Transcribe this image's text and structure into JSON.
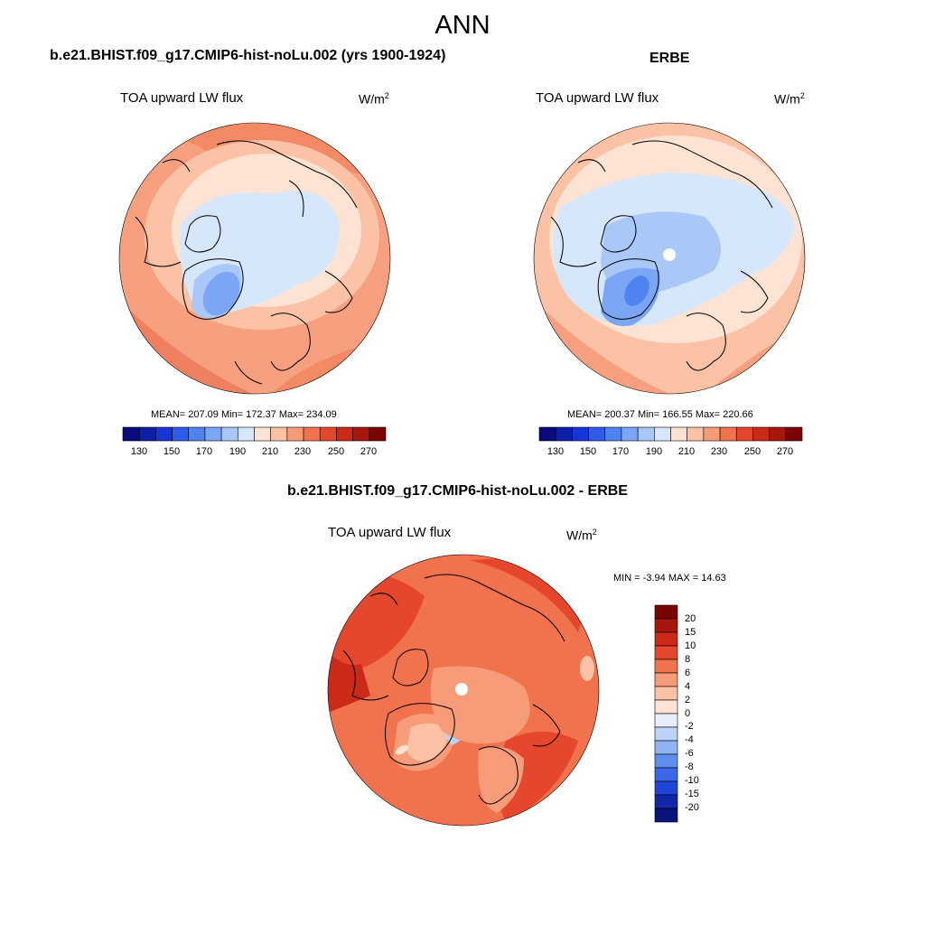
{
  "page": {
    "title": "ANN"
  },
  "panels": [
    {
      "id": "model",
      "case_title": "b.e21.BHIST.f09_g17.CMIP6-hist-noLu.002 (yrs 1900-1924)",
      "variable": "TOA upward LW flux",
      "units": "W/m",
      "units_exp": "2",
      "stats": "MEAN= 207.09  Min= 172.37  Max= 234.09"
    },
    {
      "id": "obs",
      "case_title": "ERBE",
      "variable": "TOA upward LW flux",
      "units": "W/m",
      "units_exp": "2",
      "stats": "MEAN= 200.37  Min= 166.55  Max= 220.66"
    },
    {
      "id": "diff",
      "case_title": "b.e21.BHIST.f09_g17.CMIP6-hist-noLu.002 - ERBE",
      "variable": "TOA upward LW flux",
      "units": "W/m",
      "units_exp": "2",
      "stats": "MIN =  -3.94 MAX =  14.63"
    }
  ],
  "colorbar_abs": {
    "ticks": [
      "130",
      "150",
      "170",
      "190",
      "210",
      "230",
      "250",
      "270"
    ],
    "colors": [
      "#0a0a7a",
      "#0c1fa8",
      "#1535d8",
      "#2f5ce8",
      "#4f84f0",
      "#7ba6f5",
      "#a9c8f8",
      "#d6e6fb",
      "#fde3d3",
      "#fbc2a6",
      "#f69c78",
      "#f1734e",
      "#e4472c",
      "#cc2a18",
      "#a8170c",
      "#7a0303"
    ]
  },
  "colorbar_diff": {
    "labels": [
      "20",
      "15",
      "10",
      "8",
      "6",
      "4",
      "2",
      "0",
      "-2",
      "-4",
      "-6",
      "-8",
      "-10",
      "-15",
      "-20"
    ],
    "colors": [
      "#7a0303",
      "#a8170c",
      "#cc2a18",
      "#e4472c",
      "#f1734e",
      "#f69c78",
      "#fbc2a6",
      "#fde3d3",
      "#e6eefc",
      "#bcd3f8",
      "#8fb3f3",
      "#5f8eee",
      "#3a68e8",
      "#1f45d6",
      "#0f27a8",
      "#08137c"
    ]
  }
}
